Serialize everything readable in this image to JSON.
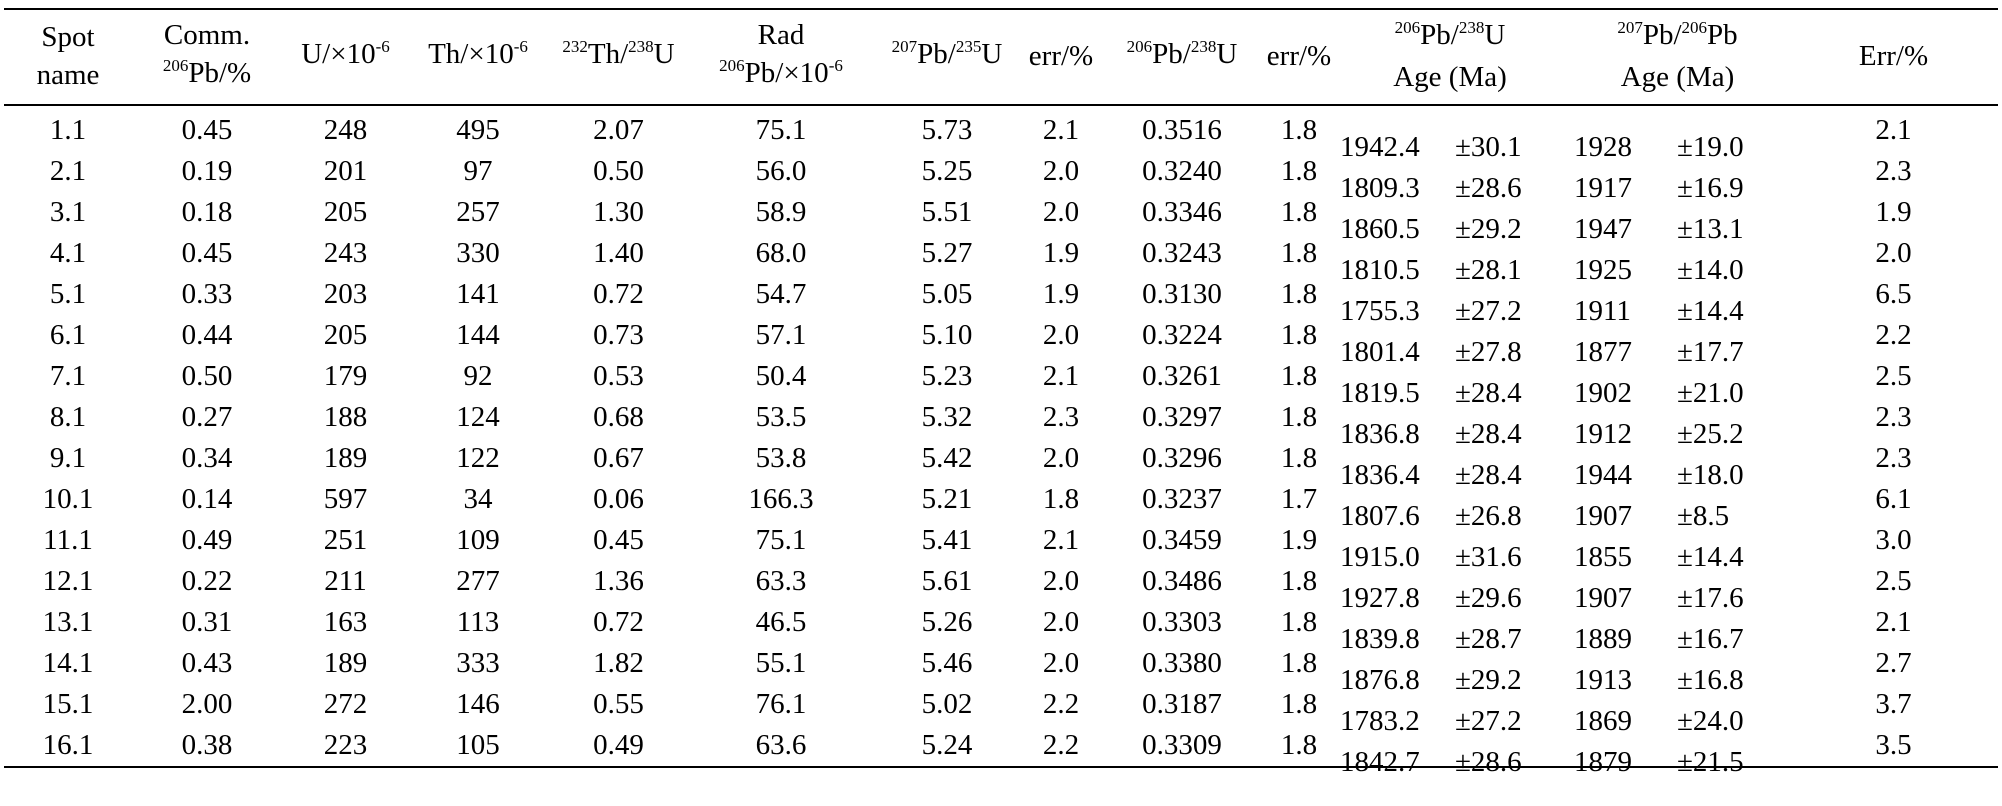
{
  "headers": {
    "spot": {
      "line1": "Spot",
      "line2": "name"
    },
    "comm": {
      "line1": "Comm.",
      "sup": "206",
      "line2": "Pb/%"
    },
    "u": {
      "pre": "U/×10",
      "sup": "-6"
    },
    "th": {
      "pre": "Th/×10",
      "sup": "-6"
    },
    "thu": {
      "sup1": "232",
      "mid": "Th/",
      "sup2": "238",
      "post": "U"
    },
    "rad": {
      "line1": "Rad",
      "sup": "206",
      "line2": "Pb/×10",
      "sup2": "-6"
    },
    "r75": {
      "sup1": "207",
      "mid": "Pb/",
      "sup2": "235",
      "post": "U"
    },
    "err1": "err/%",
    "r68": {
      "sup1": "206",
      "mid": "Pb/",
      "sup2": "238",
      "post": "U"
    },
    "err2": "err/%",
    "age68": {
      "sup1": "206",
      "mid": "Pb/",
      "sup2": "238",
      "post": "U",
      "line2": "Age (Ma)"
    },
    "age76": {
      "sup1": "207",
      "mid": "Pb/",
      "sup2": "206",
      "post": "Pb",
      "line2": "Age (Ma)"
    },
    "err3": "Err/%"
  },
  "rows": [
    {
      "spot": "1.1",
      "comm": "0.45",
      "u": "248",
      "th": "495",
      "thu": "2.07",
      "rad": "75.1",
      "r75": "5.73",
      "err1": "2.1",
      "r68": "0.3516",
      "err2": "1.8",
      "age68": "1942.4",
      "age68_err": "±30.1",
      "age76": "1928",
      "age76_err": "±19.0",
      "err3": "2.1"
    },
    {
      "spot": "2.1",
      "comm": "0.19",
      "u": "201",
      "th": "97",
      "thu": "0.50",
      "rad": "56.0",
      "r75": "5.25",
      "err1": "2.0",
      "r68": "0.3240",
      "err2": "1.8",
      "age68": "1809.3",
      "age68_err": "±28.6",
      "age76": "1917",
      "age76_err": "±16.9",
      "err3": "2.3"
    },
    {
      "spot": "3.1",
      "comm": "0.18",
      "u": "205",
      "th": "257",
      "thu": "1.30",
      "rad": "58.9",
      "r75": "5.51",
      "err1": "2.0",
      "r68": "0.3346",
      "err2": "1.8",
      "age68": "1860.5",
      "age68_err": "±29.2",
      "age76": "1947",
      "age76_err": "±13.1",
      "err3": "1.9"
    },
    {
      "spot": "4.1",
      "comm": "0.45",
      "u": "243",
      "th": "330",
      "thu": "1.40",
      "rad": "68.0",
      "r75": "5.27",
      "err1": "1.9",
      "r68": "0.3243",
      "err2": "1.8",
      "age68": "1810.5",
      "age68_err": "±28.1",
      "age76": "1925",
      "age76_err": "±14.0",
      "err3": "2.0"
    },
    {
      "spot": "5.1",
      "comm": "0.33",
      "u": "203",
      "th": "141",
      "thu": "0.72",
      "rad": "54.7",
      "r75": "5.05",
      "err1": "1.9",
      "r68": "0.3130",
      "err2": "1.8",
      "age68": "1755.3",
      "age68_err": "±27.2",
      "age76": "1911",
      "age76_err": "±14.4",
      "err3": "6.5"
    },
    {
      "spot": "6.1",
      "comm": "0.44",
      "u": "205",
      "th": "144",
      "thu": "0.73",
      "rad": "57.1",
      "r75": "5.10",
      "err1": "2.0",
      "r68": "0.3224",
      "err2": "1.8",
      "age68": "1801.4",
      "age68_err": "±27.8",
      "age76": "1877",
      "age76_err": "±17.7",
      "err3": "2.2"
    },
    {
      "spot": "7.1",
      "comm": "0.50",
      "u": "179",
      "th": "92",
      "thu": "0.53",
      "rad": "50.4",
      "r75": "5.23",
      "err1": "2.1",
      "r68": "0.3261",
      "err2": "1.8",
      "age68": "1819.5",
      "age68_err": "±28.4",
      "age76": "1902",
      "age76_err": "±21.0",
      "err3": "2.5"
    },
    {
      "spot": "8.1",
      "comm": "0.27",
      "u": "188",
      "th": "124",
      "thu": "0.68",
      "rad": "53.5",
      "r75": "5.32",
      "err1": "2.3",
      "r68": "0.3297",
      "err2": "1.8",
      "age68": "1836.8",
      "age68_err": "±28.4",
      "age76": "1912",
      "age76_err": "±25.2",
      "err3": "2.3"
    },
    {
      "spot": "9.1",
      "comm": "0.34",
      "u": "189",
      "th": "122",
      "thu": "0.67",
      "rad": "53.8",
      "r75": "5.42",
      "err1": "2.0",
      "r68": "0.3296",
      "err2": "1.8",
      "age68": "1836.4",
      "age68_err": "±28.4",
      "age76": "1944",
      "age76_err": "±18.0",
      "err3": "2.3"
    },
    {
      "spot": "10.1",
      "comm": "0.14",
      "u": "597",
      "th": "34",
      "thu": "0.06",
      "rad": "166.3",
      "r75": "5.21",
      "err1": "1.8",
      "r68": "0.3237",
      "err2": "1.7",
      "age68": "1807.6",
      "age68_err": "±26.8",
      "age76": "1907",
      "age76_err": "±8.5",
      "err3": "6.1"
    },
    {
      "spot": "11.1",
      "comm": "0.49",
      "u": "251",
      "th": "109",
      "thu": "0.45",
      "rad": "75.1",
      "r75": "5.41",
      "err1": "2.1",
      "r68": "0.3459",
      "err2": "1.9",
      "age68": "1915.0",
      "age68_err": "±31.6",
      "age76": "1855",
      "age76_err": "±14.4",
      "err3": "3.0"
    },
    {
      "spot": "12.1",
      "comm": "0.22",
      "u": "211",
      "th": "277",
      "thu": "1.36",
      "rad": "63.3",
      "r75": "5.61",
      "err1": "2.0",
      "r68": "0.3486",
      "err2": "1.8",
      "age68": "1927.8",
      "age68_err": "±29.6",
      "age76": "1907",
      "age76_err": "±17.6",
      "err3": "2.5"
    },
    {
      "spot": "13.1",
      "comm": "0.31",
      "u": "163",
      "th": "113",
      "thu": "0.72",
      "rad": "46.5",
      "r75": "5.26",
      "err1": "2.0",
      "r68": "0.3303",
      "err2": "1.8",
      "age68": "1839.8",
      "age68_err": "±28.7",
      "age76": "1889",
      "age76_err": "±16.7",
      "err3": "2.1"
    },
    {
      "spot": "14.1",
      "comm": "0.43",
      "u": "189",
      "th": "333",
      "thu": "1.82",
      "rad": "55.1",
      "r75": "5.46",
      "err1": "2.0",
      "r68": "0.3380",
      "err2": "1.8",
      "age68": "1876.8",
      "age68_err": "±29.2",
      "age76": "1913",
      "age76_err": "±16.8",
      "err3": "2.7"
    },
    {
      "spot": "15.1",
      "comm": "2.00",
      "u": "272",
      "th": "146",
      "thu": "0.55",
      "rad": "76.1",
      "r75": "5.02",
      "err1": "2.2",
      "r68": "0.3187",
      "err2": "1.8",
      "age68": "1783.2",
      "age68_err": "±27.2",
      "age76": "1869",
      "age76_err": "±24.0",
      "err3": "3.7"
    },
    {
      "spot": "16.1",
      "comm": "0.38",
      "u": "223",
      "th": "105",
      "thu": "0.49",
      "rad": "63.6",
      "r75": "5.24",
      "err1": "2.2",
      "r68": "0.3309",
      "err2": "1.8",
      "age68": "1842.7",
      "age68_err": "±28.6",
      "age76": "1879",
      "age76_err": "±21.5",
      "err3": "3.5"
    }
  ]
}
